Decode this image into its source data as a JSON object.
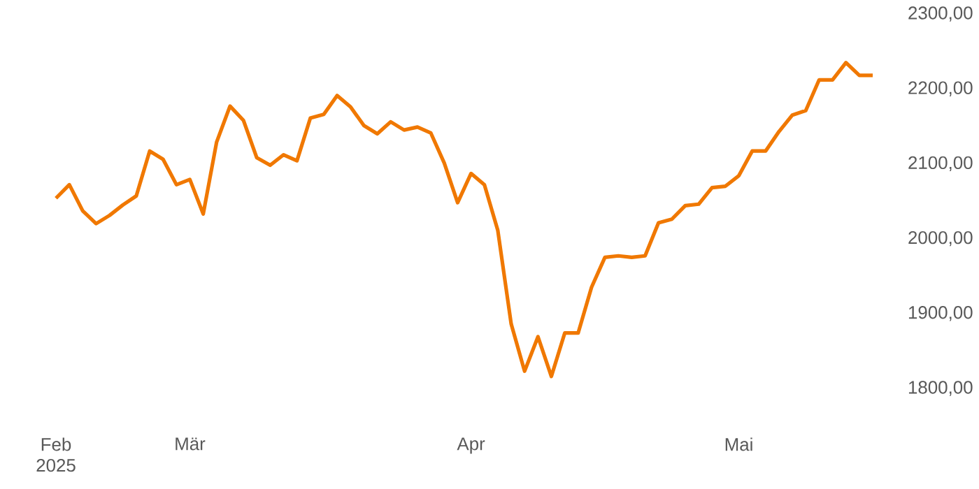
{
  "chart_data": {
    "type": "line",
    "categories": [
      "Feb 2025",
      null,
      null,
      null,
      null,
      null,
      null,
      null,
      null,
      null,
      "Mär",
      null,
      null,
      null,
      null,
      null,
      null,
      null,
      null,
      null,
      null,
      null,
      null,
      null,
      null,
      null,
      null,
      null,
      null,
      null,
      null,
      "Apr",
      null,
      null,
      null,
      null,
      null,
      null,
      null,
      null,
      null,
      null,
      null,
      null,
      null,
      null,
      null,
      null,
      null,
      null,
      null,
      "Mai",
      null,
      null,
      null,
      null,
      null,
      null,
      null,
      null,
      null,
      null
    ],
    "series": [
      {
        "color": "#f07800",
        "values": [
          2054,
          2072,
          2037,
          2020,
          2031,
          2045,
          2057,
          2117,
          2106,
          2072,
          2079,
          2033,
          2129,
          2177,
          2158,
          2108,
          2098,
          2112,
          2104,
          2161,
          2166,
          2191,
          2176,
          2151,
          2140,
          2156,
          2145,
          2149,
          2141,
          2101,
          2048,
          2087,
          2072,
          2011,
          1886,
          1823,
          1869,
          1816,
          1874,
          1874,
          1935,
          1975,
          1977,
          1975,
          1977,
          2021,
          2026,
          2044,
          2046,
          2068,
          2070,
          2084,
          2117,
          2117,
          2143,
          2165,
          2171,
          2212,
          2212,
          2235,
          2218,
          2218
        ]
      }
    ],
    "ylim": [
      1800,
      2300
    ],
    "yticks": [
      {
        "value": 1800,
        "label": "1800,00"
      },
      {
        "value": 1900,
        "label": "1900,00"
      },
      {
        "value": 2000,
        "label": "2000,00"
      },
      {
        "value": 2100,
        "label": "2100,00"
      },
      {
        "value": 2200,
        "label": "2200,00"
      },
      {
        "value": 2300,
        "label": "2300,00"
      }
    ],
    "grid": false,
    "marker": "none",
    "line_style": "solid"
  }
}
